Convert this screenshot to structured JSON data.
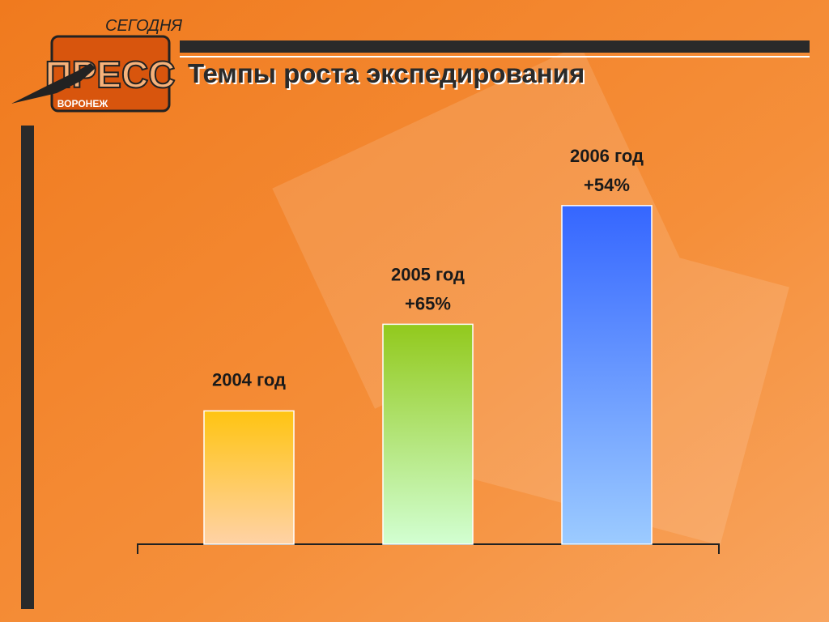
{
  "logo": {
    "top": "СЕГОДНЯ",
    "main": "ПРЕСС",
    "bottom": "ВОРОНЕЖ"
  },
  "chart_data": {
    "type": "bar",
    "title": "Темпы роста экспедирования",
    "categories": [
      "2004 год",
      "2005 год",
      "2006 год"
    ],
    "values": [
      100,
      165,
      254
    ],
    "growth_labels": [
      null,
      "+65%",
      "+54%"
    ],
    "colors": [
      [
        "#ffc412",
        "#ffd2a6"
      ],
      [
        "#92c91c",
        "#d2ffd2"
      ],
      [
        "#3566ff",
        "#9ccbff"
      ]
    ],
    "ylim": [
      0,
      260
    ]
  }
}
